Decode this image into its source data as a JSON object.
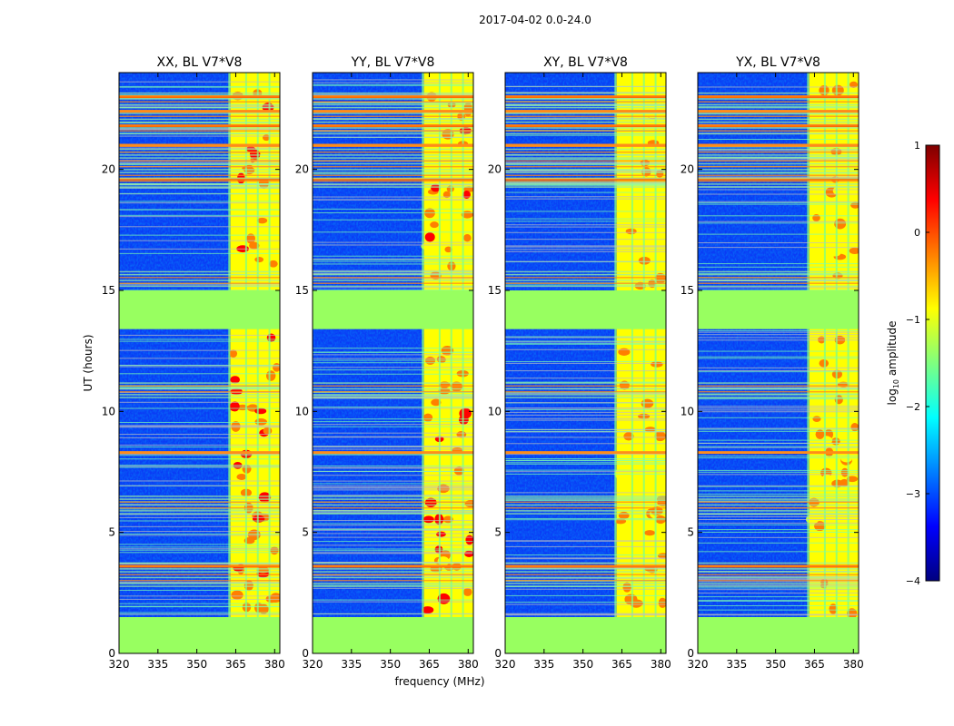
{
  "chart_data": {
    "type": "heatmap",
    "suptitle": "2017-04-02 0.0-24.0",
    "xlabel": "frequency (MHz)",
    "ylabel": "UT (hours)",
    "xlim": [
      320,
      382
    ],
    "ylim": [
      0,
      24
    ],
    "xticks": [
      "320",
      "335",
      "350",
      "365",
      "380"
    ],
    "xtick_values": [
      320,
      335,
      350,
      365,
      380
    ],
    "yticks": [
      "0",
      "5",
      "10",
      "15",
      "20"
    ],
    "ytick_values": [
      0,
      5,
      10,
      15,
      20
    ],
    "colorbar": {
      "label_prefix": "log",
      "label_sub": "10",
      "label_suffix": " amplitude",
      "range": [
        -4,
        1
      ],
      "ticks": [
        "1",
        "0",
        "−1",
        "−2",
        "−3",
        "−4"
      ],
      "tick_values": [
        1,
        0,
        -1,
        -2,
        -3,
        -4
      ],
      "colormap": [
        "#00007f",
        "#0000ff",
        "#007fff",
        "#00ffff",
        "#7fff7f",
        "#ffff00",
        "#ff7f00",
        "#ff0000",
        "#7f0000"
      ]
    },
    "panels": [
      {
        "title": "XX, BL V7*V8",
        "rfi_band_MHz": [
          360,
          382
        ]
      },
      {
        "title": "YY, BL V7*V8",
        "rfi_band_MHz": [
          360,
          382
        ]
      },
      {
        "title": "XY, BL V7*V8",
        "rfi_band_MHz": [
          360,
          382
        ]
      },
      {
        "title": "YX, BL V7*V8",
        "rfi_band_MHz": [
          360,
          382
        ]
      }
    ],
    "flagged_ut_ranges_hours": [
      [
        0.0,
        1.5
      ],
      [
        13.4,
        15.0
      ]
    ],
    "bright_freq_channels_MHz": [
      364,
      367,
      371,
      376,
      380
    ],
    "horizontal_rfi_ut_hours": [
      3.6,
      8.3,
      19.6,
      21.0,
      21.8,
      22.4,
      23.0
    ]
  }
}
